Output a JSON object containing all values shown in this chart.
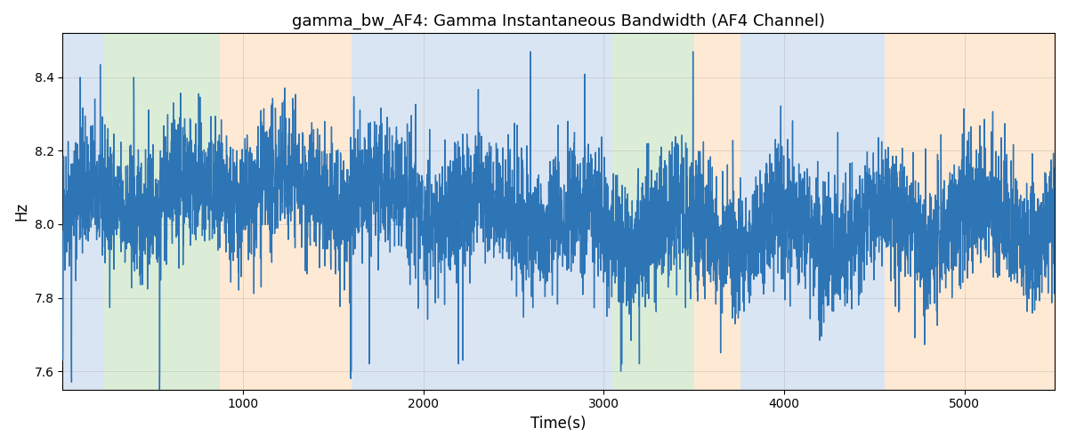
{
  "title": "gamma_bw_AF4: Gamma Instantaneous Bandwidth (AF4 Channel)",
  "xlabel": "Time(s)",
  "ylabel": "Hz",
  "ylim": [
    7.55,
    8.52
  ],
  "xlim": [
    0,
    5500
  ],
  "yticks": [
    7.6,
    7.8,
    8.0,
    8.2,
    8.4
  ],
  "xticks": [
    1000,
    2000,
    3000,
    4000,
    5000
  ],
  "line_color": "#2E75B6",
  "line_width": 1.0,
  "grid_color": "#AAAAAA",
  "grid_alpha": 0.5,
  "background_bands": [
    {
      "xmin": 0,
      "xmax": 230,
      "color": "#AEC6E8",
      "alpha": 0.45
    },
    {
      "xmin": 230,
      "xmax": 870,
      "color": "#B2D8A8",
      "alpha": 0.45
    },
    {
      "xmin": 870,
      "xmax": 1600,
      "color": "#FECFA0",
      "alpha": 0.45
    },
    {
      "xmin": 1600,
      "xmax": 2940,
      "color": "#AEC6E8",
      "alpha": 0.45
    },
    {
      "xmin": 2940,
      "xmax": 3050,
      "color": "#AEC6E8",
      "alpha": 0.45
    },
    {
      "xmin": 3050,
      "xmax": 3500,
      "color": "#B2D8A8",
      "alpha": 0.45
    },
    {
      "xmin": 3500,
      "xmax": 3760,
      "color": "#FECFA0",
      "alpha": 0.45
    },
    {
      "xmin": 3760,
      "xmax": 4560,
      "color": "#AEC6E8",
      "alpha": 0.45
    },
    {
      "xmin": 4560,
      "xmax": 5500,
      "color": "#FECFA0",
      "alpha": 0.45
    }
  ],
  "seed": 42,
  "n_points": 5500,
  "x_start": 0,
  "x_end": 5499,
  "base_value": 8.02,
  "noise_std": 0.09,
  "figsize": [
    12.0,
    5.0
  ],
  "dpi": 100
}
